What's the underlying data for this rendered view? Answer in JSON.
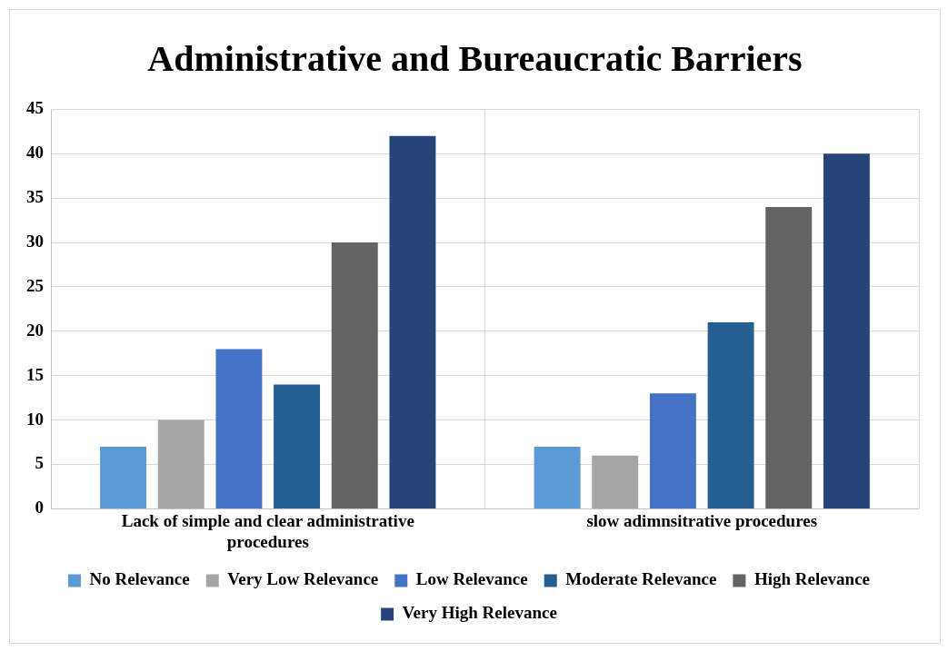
{
  "chart_data": {
    "type": "bar",
    "title": "Administrative and Bureaucratic Barriers",
    "categories": [
      "Lack of simple and clear administrative procedures",
      "slow adimnsitrative procedures"
    ],
    "series": [
      {
        "name": "No Relevance",
        "color": "#5b9bd5",
        "values": [
          7,
          7
        ]
      },
      {
        "name": "Very Low Relevance",
        "color": "#a5a5a5",
        "values": [
          10,
          6
        ]
      },
      {
        "name": "Low Relevance",
        "color": "#4472c4",
        "values": [
          18,
          13
        ]
      },
      {
        "name": "Moderate Relevance",
        "color": "#255e91",
        "values": [
          14,
          21
        ]
      },
      {
        "name": "High Relevance",
        "color": "#636363",
        "values": [
          30,
          34
        ]
      },
      {
        "name": "Very High Relevance",
        "color": "#264478",
        "values": [
          42,
          40
        ]
      }
    ],
    "ylim": [
      0,
      45
    ],
    "yticks": [
      0,
      5,
      10,
      15,
      20,
      25,
      30,
      35,
      40,
      45
    ],
    "grid": true,
    "legend": "bottom"
  }
}
